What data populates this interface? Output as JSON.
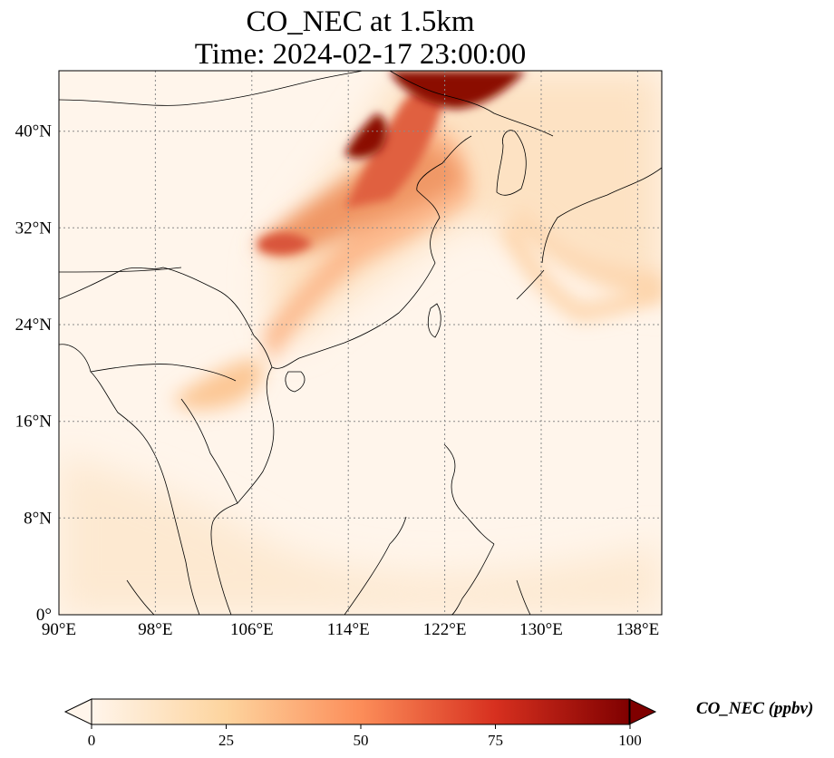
{
  "title_line1": "CO_NEC at 1.5km",
  "title_line2": "Time: 2024-02-17 23:00:00",
  "map": {
    "lon_range": [
      90,
      140
    ],
    "lat_range": [
      0,
      45
    ],
    "lon_ticks": [
      {
        "value": 90,
        "label": "90°E"
      },
      {
        "value": 98,
        "label": "98°E"
      },
      {
        "value": 106,
        "label": "106°E"
      },
      {
        "value": 114,
        "label": "114°E"
      },
      {
        "value": 122,
        "label": "122°E"
      },
      {
        "value": 130,
        "label": "130°E"
      },
      {
        "value": 138,
        "label": "138°E"
      }
    ],
    "lat_ticks": [
      {
        "value": 0,
        "label": "0°"
      },
      {
        "value": 8,
        "label": "8°N"
      },
      {
        "value": 16,
        "label": "16°N"
      },
      {
        "value": 24,
        "label": "24°N"
      },
      {
        "value": 32,
        "label": "32°N"
      },
      {
        "value": 40,
        "label": "40°N"
      }
    ],
    "gridlines": true,
    "background_color": "#fff5eb"
  },
  "colorbar": {
    "label": "CO_NEC (ppbv)",
    "min": 0,
    "max": 100,
    "ticks": [
      {
        "value": 0,
        "label": "0"
      },
      {
        "value": 25,
        "label": "25"
      },
      {
        "value": 50,
        "label": "50"
      },
      {
        "value": 75,
        "label": "75"
      },
      {
        "value": 100,
        "label": "100"
      }
    ],
    "colormap": "OrRd",
    "extend": "both"
  }
}
